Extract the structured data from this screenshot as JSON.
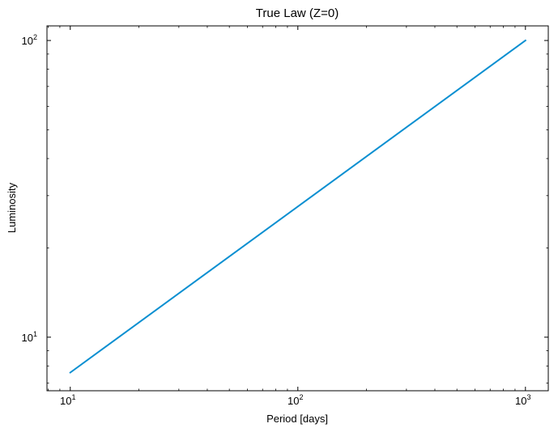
{
  "chart_data": {
    "type": "line",
    "title": "True Law (Z=0)",
    "xlabel": "Period [days]",
    "ylabel": "Luminosity",
    "xscale": "log",
    "yscale": "log",
    "xlim": [
      7.9,
      1260
    ],
    "ylim": [
      6.6,
      112
    ],
    "grid": false,
    "x_ticks": [
      {
        "base": "10",
        "exp": "1",
        "value": 10
      },
      {
        "base": "10",
        "exp": "2",
        "value": 100
      },
      {
        "base": "10",
        "exp": "3",
        "value": 1000
      }
    ],
    "y_ticks": [
      {
        "base": "10",
        "exp": "1",
        "value": 10
      },
      {
        "base": "10",
        "exp": "2",
        "value": 100
      }
    ],
    "series": [
      {
        "color": "#0a8fd1",
        "x": [
          10,
          1000
        ],
        "y": [
          7.6,
          100
        ]
      }
    ]
  }
}
